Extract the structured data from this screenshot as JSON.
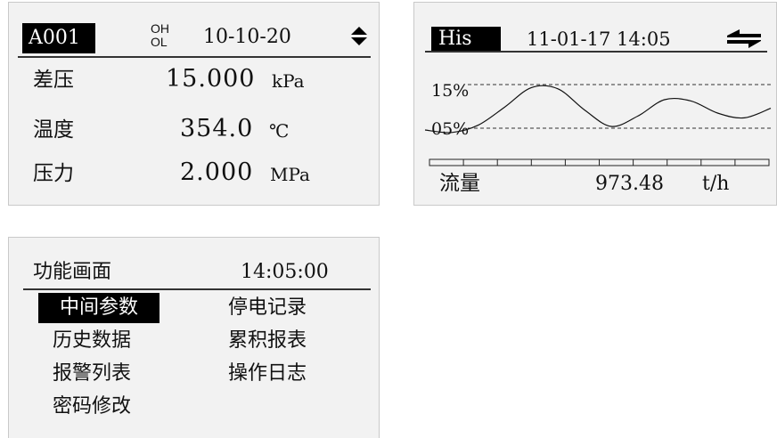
{
  "panel_main": {
    "tag": "A001",
    "oh": "OH",
    "ol": "OL",
    "date": "10-10-20",
    "rows": [
      {
        "label": "差压",
        "value": "15.000",
        "unit": "kPa"
      },
      {
        "label": "温度",
        "value": "354.0",
        "unit": "℃"
      },
      {
        "label": "压力",
        "value": "2.000",
        "unit": "MPa"
      }
    ],
    "nav_icon": "up-down-arrows-icon"
  },
  "panel_history": {
    "tag": "His",
    "datetime": "11-01-17 14:05",
    "high_label": "15%",
    "low_label": "05%",
    "footer_label": "流量",
    "footer_value": "973.48",
    "footer_unit": "t/h",
    "nav_icon": "left-right-arrows-icon",
    "trend_shape": [
      0.78,
      0.82,
      0.7,
      0.4,
      0.08,
      0.1,
      0.45,
      0.72,
      0.55,
      0.28,
      0.3,
      0.5,
      0.58,
      0.42
    ]
  },
  "panel_menu": {
    "title": "功能画面",
    "time": "14:05:00",
    "items": [
      {
        "label": "中间参数",
        "selected": true
      },
      {
        "label": "停电记录",
        "selected": false
      },
      {
        "label": "历史数据",
        "selected": false
      },
      {
        "label": "累积报表",
        "selected": false
      },
      {
        "label": "报警列表",
        "selected": false
      },
      {
        "label": "操作日志",
        "selected": false
      },
      {
        "label": "密码修改",
        "selected": false
      }
    ]
  }
}
